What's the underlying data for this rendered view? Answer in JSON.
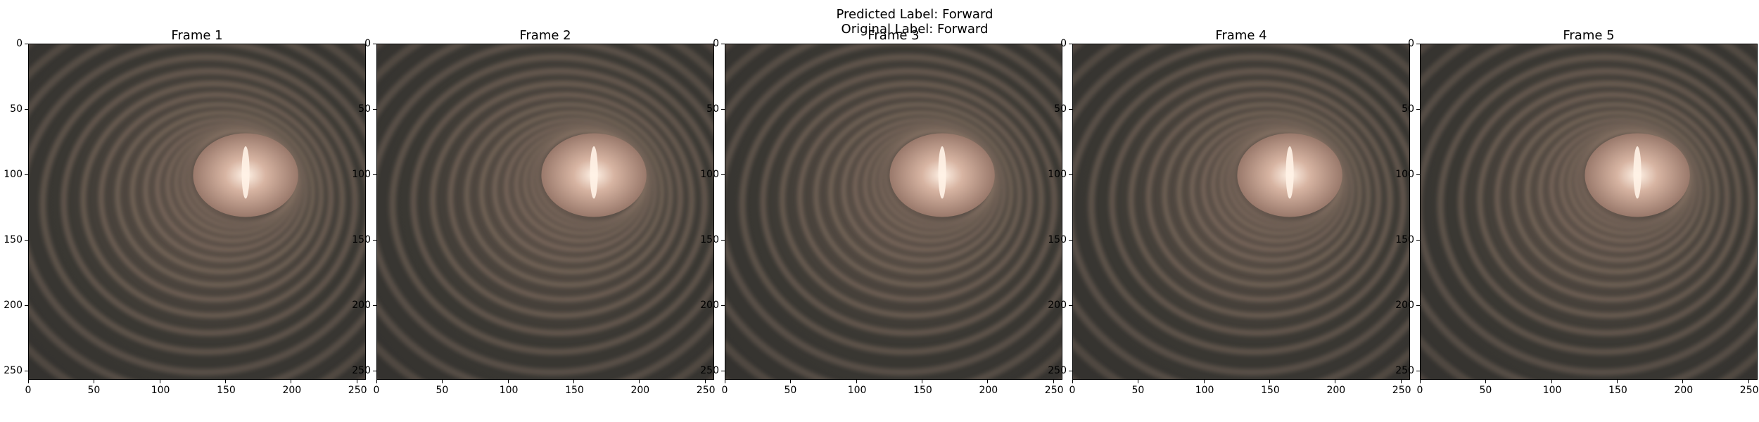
{
  "suptitle": {
    "predicted": "Predicted Label: Forward",
    "original": "Original Label: Forward"
  },
  "frames": [
    {
      "title": "Frame 1"
    },
    {
      "title": "Frame 2"
    },
    {
      "title": "Frame 3"
    },
    {
      "title": "Frame 4"
    },
    {
      "title": "Frame 5"
    }
  ],
  "axes": {
    "xticks": [
      "0",
      "50",
      "100",
      "150",
      "200",
      "250"
    ],
    "yticks": [
      "0",
      "50",
      "100",
      "150",
      "200",
      "250"
    ],
    "range": [
      0,
      256
    ]
  },
  "colors": {
    "background": "#3a3833",
    "ring": "#8a7566",
    "lumen": "#d7b4a2",
    "highlight": "#fff2e6"
  }
}
